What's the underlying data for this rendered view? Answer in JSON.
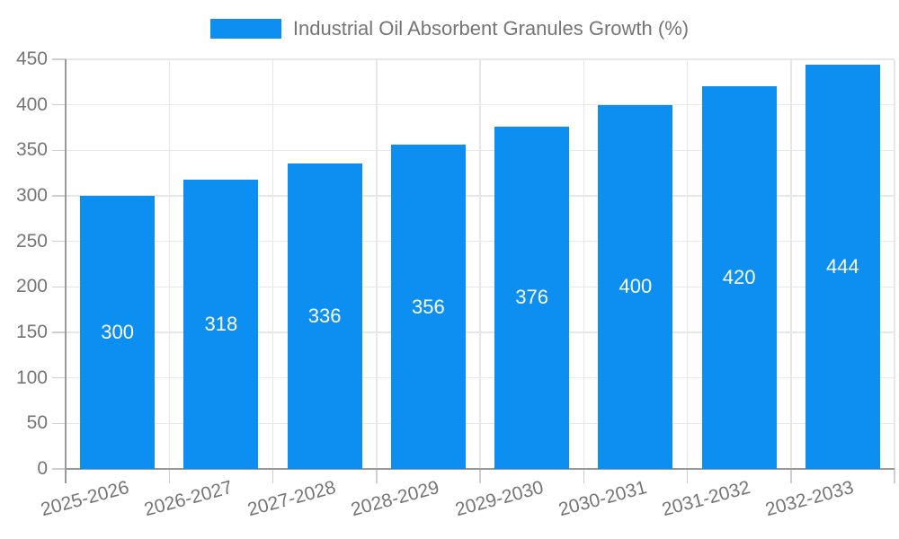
{
  "legend": {
    "label": "Industrial Oil Absorbent Granules Growth (%)"
  },
  "chart_data": {
    "type": "bar",
    "title": "Industrial Oil Absorbent Granules Growth (%)",
    "categories": [
      "2025-2026",
      "2026-2027",
      "2027-2028",
      "2028-2029",
      "2029-2030",
      "2030-2031",
      "2031-2032",
      "2032-2033"
    ],
    "series": [
      {
        "name": "Industrial Oil Absorbent Granules Growth (%)",
        "values": [
          300,
          318,
          336,
          356,
          376,
          400,
          420,
          444
        ]
      }
    ],
    "values": [
      300,
      318,
      336,
      356,
      376,
      400,
      420,
      444
    ],
    "value_labels": [
      "300",
      "318",
      "336",
      "356",
      "376",
      "400",
      "420",
      "444"
    ],
    "ytick_labels": [
      "0",
      "50",
      "100",
      "150",
      "200",
      "250",
      "300",
      "350",
      "400",
      "450"
    ],
    "xlabel": "",
    "ylabel": "",
    "ylim": [
      0,
      450
    ],
    "ytick_step": 50,
    "grid": "on",
    "legend_position": "top",
    "colors": {
      "bar": "#0d8ff2",
      "axis_text": "#757575",
      "value_text": "#ffffff",
      "gridline": "#e7e7e7",
      "axis_line": "#999999",
      "tick_line": "#cfcfcf",
      "background": "#ffffff"
    }
  }
}
